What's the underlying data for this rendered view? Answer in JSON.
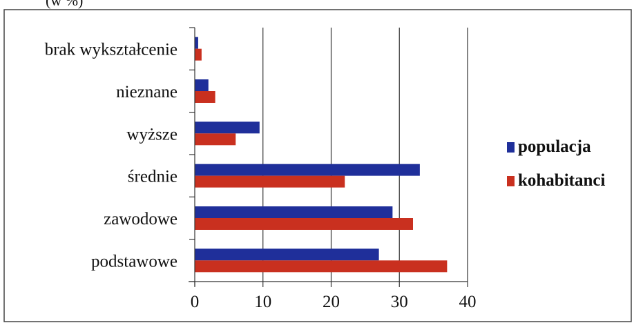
{
  "chart_data": {
    "type": "bar",
    "orientation": "horizontal",
    "top_label": "(w %)",
    "categories": [
      "podstawowe",
      "zawodowe",
      "średnie",
      "wyższe",
      "nieznane",
      "brak wykształcenie"
    ],
    "series": [
      {
        "name": "populacja",
        "color": "#1f2f9a",
        "values": [
          27,
          29,
          33,
          9.5,
          2,
          0.5
        ]
      },
      {
        "name": "kohabitanci",
        "color": "#c9301f",
        "values": [
          37,
          32,
          22,
          6,
          3,
          1
        ]
      }
    ],
    "xticks": [
      0,
      10,
      20,
      30,
      40
    ],
    "xlim": [
      0,
      40
    ],
    "grid": true,
    "legend_position": "right"
  }
}
